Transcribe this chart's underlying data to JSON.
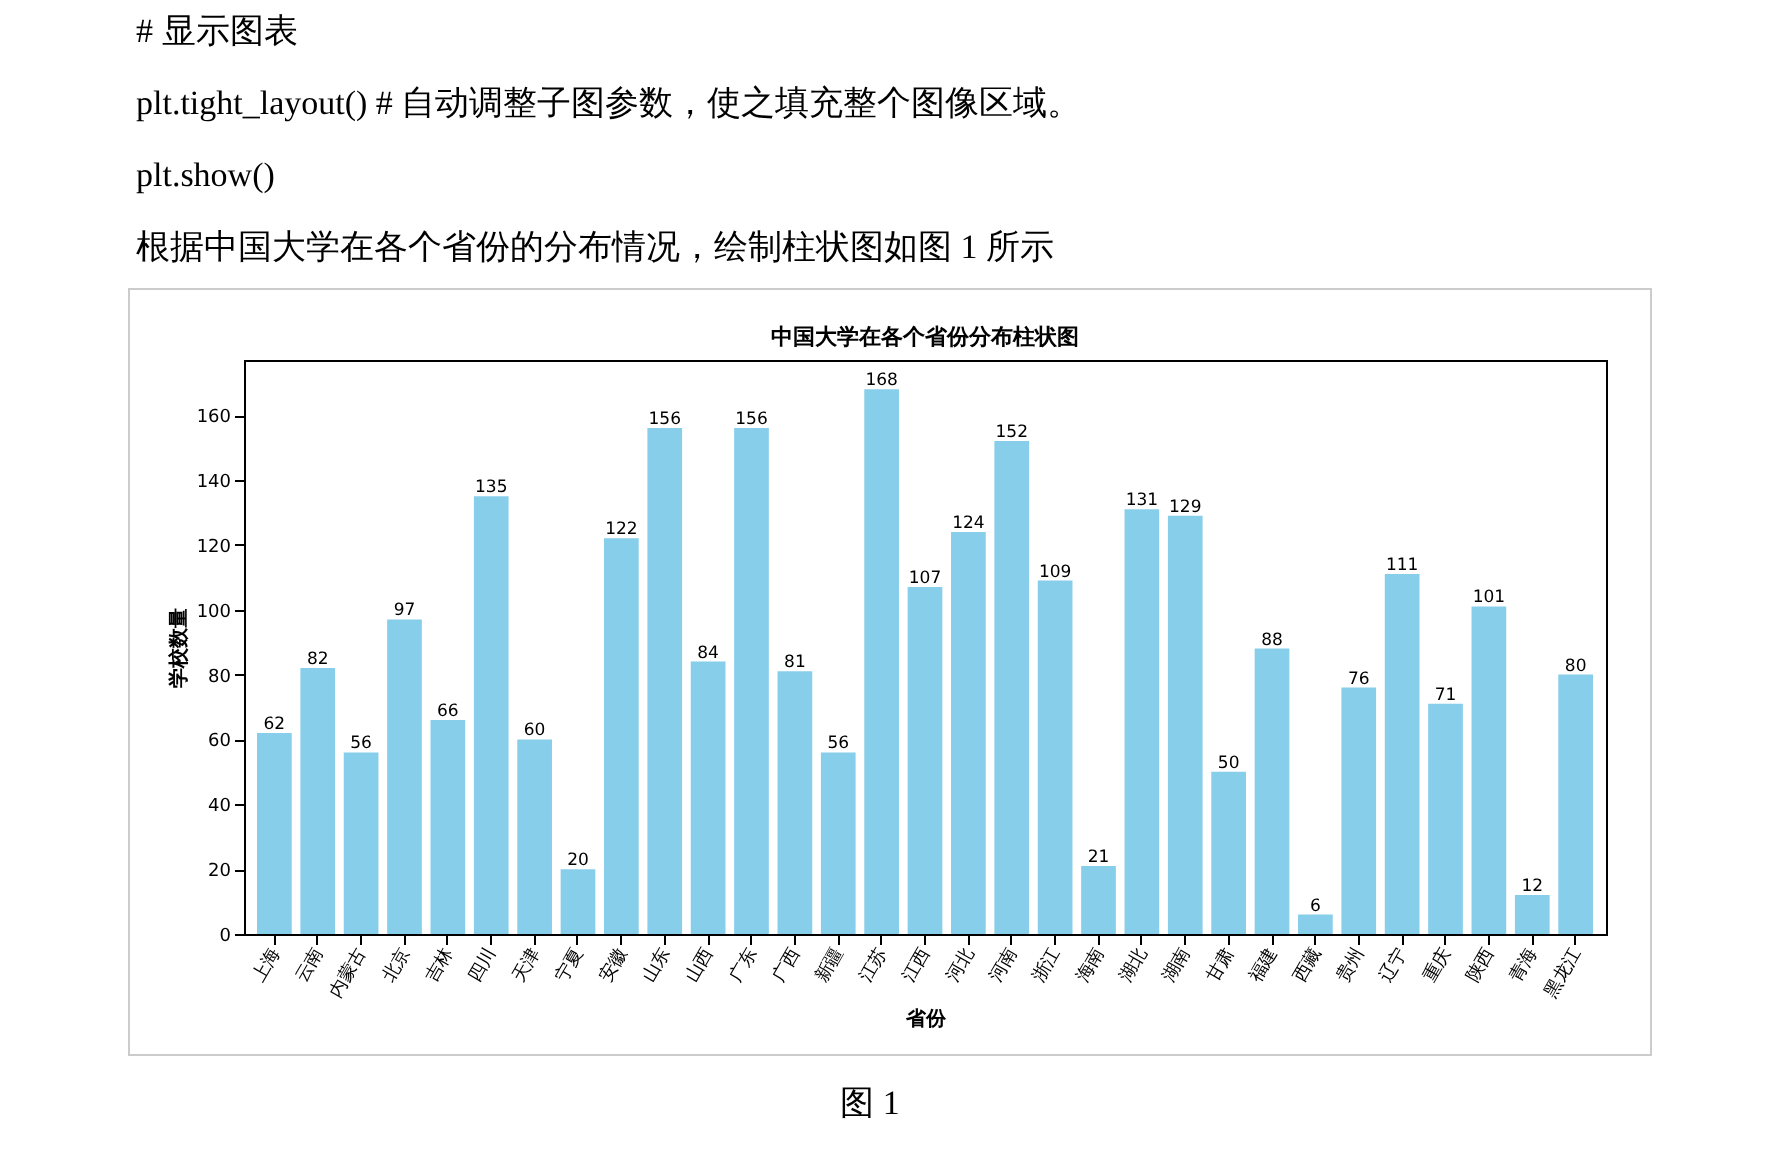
{
  "chart_data": {
    "type": "bar",
    "title": "中国大学在各个省份分布柱状图",
    "xlabel": "省份",
    "ylabel": "学校数量",
    "annotations": [
      "# 显示图表",
      "plt.tight_layout()   # 自动调整子图参数，使之填充整个图像区域。",
      "plt.show()",
      "根据中国大学在各个省份的分布情况，绘制柱状图如图 1 所示",
      "图 1"
    ],
    "categories": [
      "上海",
      "云南",
      "内蒙古",
      "北京",
      "吉林",
      "四川",
      "天津",
      "宁夏",
      "安徽",
      "山东",
      "山西",
      "广东",
      "广西",
      "新疆",
      "江苏",
      "江西",
      "河北",
      "河南",
      "浙江",
      "海南",
      "湖北",
      "湖南",
      "甘肃",
      "福建",
      "西藏",
      "贵州",
      "辽宁",
      "重庆",
      "陕西",
      "青海",
      "黑龙江"
    ],
    "values": [
      62,
      82,
      56,
      97,
      66,
      135,
      60,
      20,
      122,
      156,
      84,
      156,
      81,
      56,
      168,
      107,
      124,
      152,
      109,
      21,
      131,
      129,
      50,
      88,
      6,
      76,
      111,
      71,
      101,
      12,
      80
    ],
    "color": "#87ceeb",
    "ylim": [
      0,
      177
    ],
    "yticks": [
      0,
      20,
      40,
      60,
      80,
      100,
      120,
      140,
      160
    ],
    "grid": false,
    "data_labels": true
  }
}
